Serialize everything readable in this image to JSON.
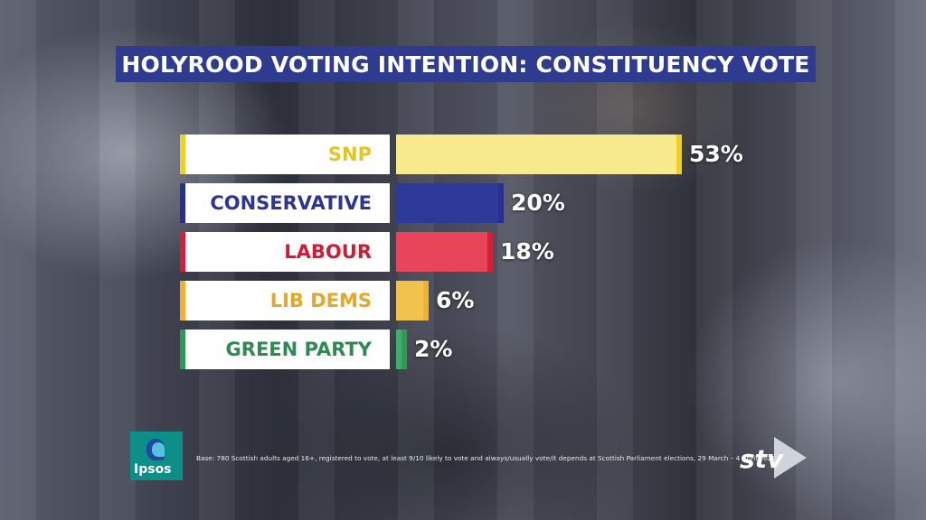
{
  "title": "HOLYROOD VOTING INTENTION: CONSTITUENCY VOTE",
  "chart_data": {
    "type": "bar",
    "orientation": "horizontal",
    "title": "HOLYROOD VOTING INTENTION: CONSTITUENCY VOTE",
    "categories": [
      "SNP",
      "CONSERVATIVE",
      "LABOUR",
      "LIB DEMS",
      "GREEN PARTY"
    ],
    "values": [
      53,
      20,
      18,
      6,
      2
    ],
    "value_labels": [
      "53%",
      "20%",
      "18%",
      "6%",
      "2%"
    ],
    "unit": "%",
    "colors": [
      "#f7e98e",
      "#2e3a9a",
      "#e8445a",
      "#f2c24f",
      "#3fae6b"
    ],
    "accent_colors": [
      "#f0d020",
      "#2a2f8f",
      "#d41e3c",
      "#f0b030",
      "#2e9a5a"
    ],
    "label_text_colors": [
      "#e3c71c",
      "#2c3591",
      "#d01c36",
      "#e3a828",
      "#2e8a52"
    ],
    "xlim": [
      0,
      53
    ],
    "grid": false,
    "legend": "none"
  },
  "footnote": "Base: 780 Scottish adults aged 16+, registered to vote, at least 9/10 likely to vote and always/usually vote/it depends at Scottish Parliament elections, 29 March – 4 April 2021",
  "logos": {
    "left": "Ipsos",
    "right": "STV"
  }
}
